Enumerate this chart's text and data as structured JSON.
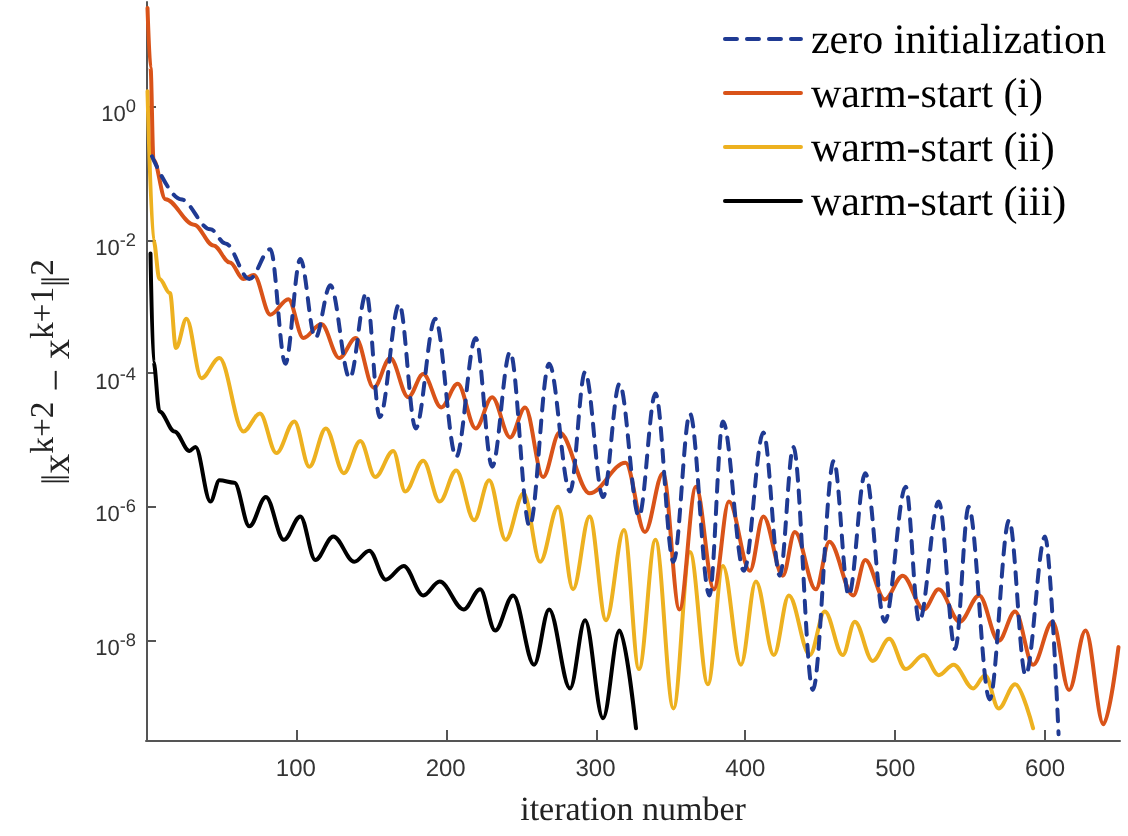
{
  "chart_data": {
    "type": "line",
    "xlabel": "iteration number",
    "ylabel": "‖x$^{k+2}$ − x$^{k+1}$‖$^{2}$",
    "log": "y",
    "xlim": [
      0,
      650
    ],
    "xticks": [
      100,
      200,
      300,
      400,
      500,
      600
    ],
    "ylim": [
      3.2e-10,
      37
    ],
    "yticks": [
      {
        "value": 1e-08,
        "label": "10$^{-8}$"
      },
      {
        "value": 1e-06,
        "label": "10$^{-6}$"
      },
      {
        "value": 0.0001,
        "label": "10$^{-4}$"
      },
      {
        "value": 0.01,
        "label": "10$^{-2}$"
      },
      {
        "value": 1,
        "label": "10$^{0}$"
      }
    ],
    "grid": false,
    "legend": "top right",
    "marker": "none",
    "line_style": "solid",
    "series": [
      {
        "name": "zero initialization",
        "color": "#1f3a93",
        "line_style": "dashed",
        "x": [
          4,
          23,
          43,
          53,
          69,
          83,
          93,
          103,
          113,
          123,
          136,
          147,
          156,
          169,
          180,
          193,
          207,
          220,
          231,
          243,
          256,
          269,
          283,
          293,
          305,
          316,
          329,
          340,
          352,
          363,
          376,
          385,
          399,
          412,
          423,
          432,
          445,
          459,
          469,
          480,
          493,
          507,
          516,
          529,
          540,
          549,
          563,
          576,
          587,
          600,
          609
        ],
        "values": [
          0.18,
          0.041,
          0.0145,
          0.0089,
          0.0026,
          0.0073,
          0.00014,
          0.0052,
          0.00034,
          0.0021,
          8.5e-05,
          0.0016,
          2.2e-05,
          0.0011,
          1.5e-05,
          0.00066,
          5.6e-06,
          0.00034,
          4e-06,
          0.00021,
          5.1e-07,
          0.00014,
          1.7e-06,
          0.000105,
          1.4e-06,
          7e-05,
          7.2e-07,
          5e-05,
          1.5e-07,
          2.5e-05,
          4.7e-08,
          1.9e-05,
          1.1e-07,
          1.3e-05,
          9.3e-08,
          7.9e-06,
          1.8e-09,
          4.9e-06,
          4.7e-08,
          3.2e-06,
          1.9e-08,
          2e-06,
          1.9e-08,
          1.2e-06,
          7.4e-09,
          1e-06,
          1.3e-09,
          6.3e-07,
          3e-09,
          3.6e-07,
          3.9e-10
        ]
      },
      {
        "name": "warm-start (i)",
        "color": "#d95319",
        "x": [
          1,
          3,
          5,
          13,
          32,
          45,
          56,
          65,
          72,
          83,
          95,
          105,
          117,
          129,
          140,
          152,
          163,
          175,
          185,
          197,
          208,
          220,
          231,
          243,
          253,
          265,
          276,
          296,
          320,
          333,
          345,
          356,
          367,
          379,
          389,
          403,
          412,
          425,
          433,
          447,
          456,
          472,
          480,
          493,
          505,
          519,
          529,
          543,
          556,
          569,
          580,
          592,
          605,
          616,
          627,
          639,
          649
        ],
        "values": [
          30,
          3.9,
          0.16,
          0.041,
          0.017,
          0.0083,
          0.0046,
          0.0026,
          0.003,
          0.00076,
          0.0013,
          0.00034,
          0.00055,
          0.00017,
          0.00034,
          6.1e-05,
          0.00017,
          4.4e-05,
          9.8e-05,
          3.1e-05,
          7e-05,
          1.5e-05,
          4.4e-05,
          1.1e-05,
          3.1e-05,
          2.8e-06,
          1.3e-05,
          1.6e-06,
          4.6e-06,
          4.2e-07,
          3.2e-06,
          2.9e-08,
          2e-06,
          5.8e-08,
          1.2e-06,
          1.1e-07,
          7.2e-07,
          9.3e-08,
          4.2e-07,
          5.8e-08,
          3e-07,
          4.7e-08,
          1.6e-07,
          4.1e-08,
          9.3e-08,
          2.9e-08,
          5.8e-08,
          1.9e-08,
          4.7e-08,
          9.8e-09,
          2.7e-08,
          4.3e-09,
          1.9e-08,
          1.8e-09,
          1.4e-08,
          5.5e-10,
          7.9e-09
        ]
      },
      {
        "name": "warm-start (ii)",
        "color": "#edb120",
        "x": [
          1,
          5,
          9,
          16,
          20,
          27,
          37,
          49,
          65,
          76,
          87,
          99,
          109,
          120,
          132,
          143,
          153,
          165,
          173,
          185,
          196,
          207,
          219,
          229,
          240,
          252,
          263,
          275,
          285,
          296,
          307,
          319,
          329,
          340,
          352,
          363,
          375,
          385,
          397,
          407,
          419,
          429,
          443,
          453,
          465,
          473,
          485,
          496,
          507,
          519,
          529,
          539,
          552,
          560,
          569,
          580,
          592
        ],
        "values": [
          1.7,
          0.01,
          0.0026,
          0.0016,
          0.00024,
          0.00066,
          8.5e-05,
          0.00017,
          1.35e-05,
          2.5e-05,
          6.4e-06,
          1.9e-05,
          4e-06,
          1.5e-05,
          3.2e-06,
          9.7e-06,
          2.8e-06,
          6.9e-06,
          1.7e-06,
          4.9e-06,
          1.2e-06,
          3.5e-06,
          6.3e-07,
          2.5e-06,
          3.2e-07,
          1.6e-06,
          1.5e-07,
          1e-06,
          5.8e-08,
          7.2e-07,
          2e-08,
          4.5e-07,
          3.7e-09,
          3.2e-07,
          9.5e-10,
          2.1e-07,
          2.2e-09,
          1.3e-07,
          4.3e-09,
          7.6e-08,
          6e-09,
          4.7e-08,
          6e-09,
          2.7e-08,
          6e-09,
          1.9e-08,
          4.9e-09,
          1.05e-08,
          3.7e-09,
          6e-09,
          3e-09,
          4.3e-09,
          1.9e-09,
          3e-09,
          9.5e-10,
          2.2e-09,
          4.8e-10
        ]
      },
      {
        "name": "warm-start (iii)",
        "color": "#000000",
        "x": [
          3,
          5,
          9,
          19,
          29,
          33,
          43,
          49,
          59,
          69,
          80,
          92,
          103,
          113,
          125,
          139,
          149,
          160,
          172,
          185,
          196,
          212,
          223,
          233,
          245,
          259,
          269,
          283,
          293,
          305,
          316,
          327
        ],
        "values": [
          0.0063,
          0.00015,
          2.7e-05,
          1.35e-05,
          6.9e-06,
          7.9e-06,
          1.2e-06,
          2.5e-06,
          2.3e-06,
          5.1e-07,
          1.4e-06,
          3.2e-07,
          7.2e-07,
          1.6e-07,
          3.6e-07,
          1.5e-07,
          2.2e-07,
          8.1e-08,
          1.3e-07,
          4.7e-08,
          7.6e-08,
          2.9e-08,
          5.8e-08,
          1.4e-08,
          4.7e-08,
          4.3e-09,
          2.9e-08,
          1.9e-09,
          2e-08,
          6.8e-10,
          1.4e-08,
          4.8e-10
        ]
      }
    ]
  }
}
